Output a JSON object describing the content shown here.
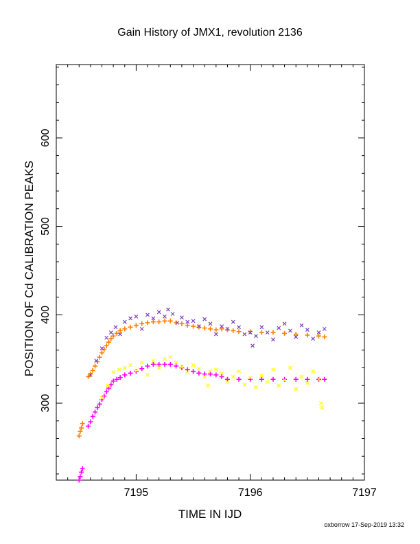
{
  "chart_data": {
    "type": "scatter",
    "title": "Gain History of JMX1, revolution 2136",
    "xlabel": "TIME IN IJD",
    "ylabel": "POSITION OF Cd CALIBRATION PEAKS",
    "xlim": [
      7194.3,
      7197.0
    ],
    "ylim": [
      213,
      683
    ],
    "x_ticks": [
      7195,
      7196,
      7197
    ],
    "y_ticks": [
      300,
      400,
      500,
      600
    ],
    "grid": false,
    "legend": "none",
    "footer": "oxborrow 17-Sep-2019 13:32",
    "series": [
      {
        "color": "#ff7f00",
        "marker": "plus",
        "points": [
          [
            7194.5,
            263
          ],
          [
            7194.51,
            268
          ],
          [
            7194.52,
            272
          ],
          [
            7194.53,
            277
          ],
          [
            7194.58,
            330
          ],
          [
            7194.6,
            333
          ],
          [
            7194.62,
            337
          ],
          [
            7194.64,
            342
          ],
          [
            7194.66,
            347
          ],
          [
            7194.68,
            352
          ],
          [
            7194.7,
            357
          ],
          [
            7194.72,
            361
          ],
          [
            7194.74,
            365
          ],
          [
            7194.76,
            369
          ],
          [
            7194.78,
            373
          ],
          [
            7194.8,
            376
          ],
          [
            7194.83,
            379
          ],
          [
            7194.86,
            382
          ],
          [
            7194.9,
            384
          ],
          [
            7194.95,
            386
          ],
          [
            7195.0,
            388
          ],
          [
            7195.05,
            390
          ],
          [
            7195.1,
            391
          ],
          [
            7195.15,
            392
          ],
          [
            7195.2,
            392
          ],
          [
            7195.25,
            393
          ],
          [
            7195.3,
            393
          ],
          [
            7195.35,
            391
          ],
          [
            7195.4,
            390
          ],
          [
            7195.45,
            388
          ],
          [
            7195.5,
            387
          ],
          [
            7195.55,
            386
          ],
          [
            7195.6,
            385
          ],
          [
            7195.65,
            384
          ],
          [
            7195.7,
            383
          ],
          [
            7195.75,
            384
          ],
          [
            7195.8,
            383
          ],
          [
            7195.85,
            382
          ],
          [
            7195.9,
            381
          ],
          [
            7196.0,
            381
          ],
          [
            7196.1,
            380
          ],
          [
            7196.2,
            380
          ],
          [
            7196.3,
            379
          ],
          [
            7196.4,
            378
          ],
          [
            7196.5,
            377
          ],
          [
            7196.6,
            376
          ],
          [
            7196.65,
            375
          ]
        ]
      },
      {
        "color": "#7f3fbf",
        "marker": "x",
        "points": [
          [
            7194.6,
            332
          ],
          [
            7194.65,
            348
          ],
          [
            7194.7,
            362
          ],
          [
            7194.74,
            374
          ],
          [
            7194.78,
            380
          ],
          [
            7194.82,
            386
          ],
          [
            7194.86,
            378
          ],
          [
            7194.9,
            392
          ],
          [
            7194.95,
            396
          ],
          [
            7195.0,
            398
          ],
          [
            7195.05,
            384
          ],
          [
            7195.1,
            400
          ],
          [
            7195.15,
            396
          ],
          [
            7195.2,
            403
          ],
          [
            7195.25,
            398
          ],
          [
            7195.28,
            406
          ],
          [
            7195.32,
            401
          ],
          [
            7195.36,
            391
          ],
          [
            7195.4,
            397
          ],
          [
            7195.45,
            392
          ],
          [
            7195.5,
            393
          ],
          [
            7195.55,
            387
          ],
          [
            7195.6,
            395
          ],
          [
            7195.65,
            390
          ],
          [
            7195.7,
            378
          ],
          [
            7195.75,
            387
          ],
          [
            7195.8,
            384
          ],
          [
            7195.85,
            392
          ],
          [
            7195.9,
            386
          ],
          [
            7195.95,
            378
          ],
          [
            7196.0,
            380
          ],
          [
            7196.02,
            365
          ],
          [
            7196.05,
            376
          ],
          [
            7196.1,
            386
          ],
          [
            7196.15,
            380
          ],
          [
            7196.2,
            372
          ],
          [
            7196.25,
            385
          ],
          [
            7196.3,
            390
          ],
          [
            7196.35,
            382
          ],
          [
            7196.4,
            375
          ],
          [
            7196.45,
            388
          ],
          [
            7196.5,
            383
          ],
          [
            7196.55,
            373
          ],
          [
            7196.6,
            380
          ],
          [
            7196.65,
            384
          ]
        ]
      },
      {
        "color": "#ff00ff",
        "marker": "plus",
        "points": [
          [
            7194.5,
            213
          ],
          [
            7194.51,
            217
          ],
          [
            7194.52,
            222
          ],
          [
            7194.53,
            226
          ],
          [
            7194.58,
            274
          ],
          [
            7194.6,
            279
          ],
          [
            7194.62,
            285
          ],
          [
            7194.64,
            290
          ],
          [
            7194.66,
            295
          ],
          [
            7194.68,
            299
          ],
          [
            7194.7,
            304
          ],
          [
            7194.72,
            308
          ],
          [
            7194.74,
            313
          ],
          [
            7194.76,
            317
          ],
          [
            7194.78,
            321
          ],
          [
            7194.8,
            325
          ],
          [
            7194.83,
            327
          ],
          [
            7194.86,
            329
          ],
          [
            7194.9,
            332
          ],
          [
            7194.95,
            334
          ],
          [
            7195.0,
            336
          ],
          [
            7195.05,
            339
          ],
          [
            7195.1,
            342
          ],
          [
            7195.15,
            344
          ],
          [
            7195.2,
            344
          ],
          [
            7195.25,
            344
          ],
          [
            7195.3,
            344
          ],
          [
            7195.35,
            342
          ],
          [
            7195.4,
            340
          ],
          [
            7195.45,
            338
          ],
          [
            7195.5,
            336
          ],
          [
            7195.55,
            334
          ],
          [
            7195.6,
            333
          ],
          [
            7195.65,
            333
          ],
          [
            7195.7,
            332
          ],
          [
            7195.75,
            330
          ],
          [
            7195.8,
            327
          ],
          [
            7195.9,
            327
          ],
          [
            7196.0,
            327
          ],
          [
            7196.1,
            327
          ],
          [
            7196.2,
            327
          ],
          [
            7196.3,
            327
          ],
          [
            7196.4,
            327
          ],
          [
            7196.5,
            327
          ],
          [
            7196.6,
            327
          ],
          [
            7196.65,
            327
          ]
        ]
      },
      {
        "color": "#ffff00",
        "marker": "x",
        "points": [
          [
            7194.7,
            306
          ],
          [
            7194.75,
            320
          ],
          [
            7194.8,
            335
          ],
          [
            7194.85,
            338
          ],
          [
            7194.9,
            340
          ],
          [
            7194.95,
            343
          ],
          [
            7195.0,
            337
          ],
          [
            7195.05,
            346
          ],
          [
            7195.1,
            332
          ],
          [
            7195.15,
            348
          ],
          [
            7195.2,
            340
          ],
          [
            7195.25,
            350
          ],
          [
            7195.3,
            352
          ],
          [
            7195.35,
            346
          ],
          [
            7195.4,
            341
          ],
          [
            7195.45,
            335
          ],
          [
            7195.5,
            343
          ],
          [
            7195.55,
            339
          ],
          [
            7195.6,
            330
          ],
          [
            7195.63,
            320
          ],
          [
            7195.65,
            336
          ],
          [
            7195.7,
            338
          ],
          [
            7195.75,
            334
          ],
          [
            7195.8,
            324
          ],
          [
            7195.85,
            330
          ],
          [
            7195.9,
            336
          ],
          [
            7195.95,
            321
          ],
          [
            7196.0,
            329
          ],
          [
            7196.05,
            318
          ],
          [
            7196.1,
            331
          ],
          [
            7196.15,
            324
          ],
          [
            7196.2,
            338
          ],
          [
            7196.25,
            320
          ],
          [
            7196.3,
            326
          ],
          [
            7196.35,
            340
          ],
          [
            7196.4,
            316
          ],
          [
            7196.45,
            330
          ],
          [
            7196.5,
            323
          ],
          [
            7196.55,
            336
          ],
          [
            7196.6,
            327
          ],
          [
            7196.62,
            300
          ],
          [
            7196.63,
            295
          ]
        ]
      }
    ]
  }
}
